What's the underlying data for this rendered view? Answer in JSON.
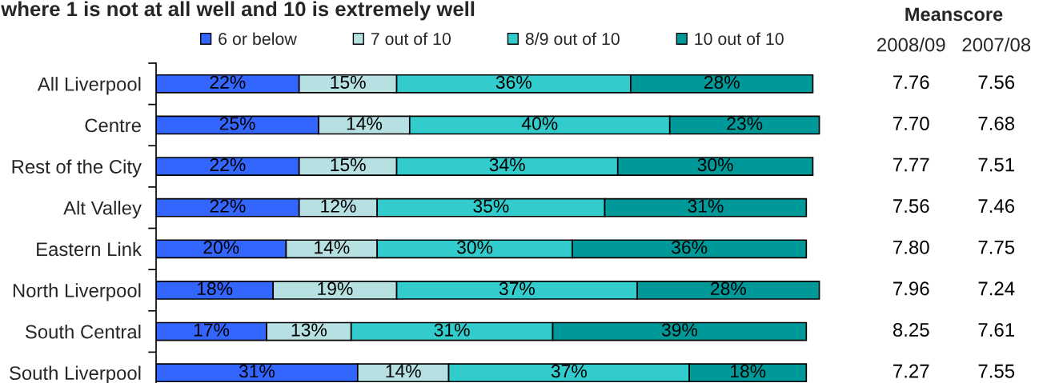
{
  "chart_data": [
    {
      "type": "bar",
      "title": "where 1 is not at all well and 10 is extremely well",
      "orientation": "horizontal",
      "stacked": true,
      "categories": [
        "All Liverpool",
        "Centre",
        "Rest of the City",
        "Alt Valley",
        "Eastern Link",
        "North Liverpool",
        "South Central",
        "South Liverpool"
      ],
      "series": [
        {
          "name": "6 or below",
          "color": "#3366ff",
          "values": [
            22,
            25,
            22,
            22,
            20,
            18,
            17,
            31
          ],
          "value_labels": [
            "22%",
            "25%",
            "22%",
            "22%",
            "20%",
            "18%",
            "17%",
            "31%"
          ]
        },
        {
          "name": "7 out of 10",
          "color": "#b7e0e2",
          "values": [
            15,
            14,
            15,
            12,
            14,
            19,
            13,
            14
          ],
          "value_labels": [
            "15%",
            "14%",
            "15%",
            "12%",
            "14%",
            "19%",
            "13%",
            "14%"
          ]
        },
        {
          "name": "8/9 out of 10",
          "color": "#33cccc",
          "values": [
            36,
            40,
            34,
            35,
            30,
            37,
            31,
            37
          ],
          "value_labels": [
            "36%",
            "40%",
            "34%",
            "35%",
            "30%",
            "37%",
            "31%",
            "37%"
          ]
        },
        {
          "name": "10 out of 10",
          "color": "#009999",
          "values": [
            28,
            23,
            30,
            31,
            36,
            28,
            39,
            18
          ],
          "value_labels": [
            "28%",
            "23%",
            "30%",
            "31%",
            "36%",
            "28%",
            "39%",
            "18%"
          ]
        }
      ],
      "legend": "top",
      "tick_labels": "y"
    },
    {
      "type": "other",
      "title": "Meanscore",
      "categories": [
        "2008/09",
        "2007/08"
      ],
      "annotations": [
        "7.76",
        "7.56",
        "7.70",
        "7.68",
        "7.77",
        "7.51",
        "7.56",
        "7.46",
        "7.80",
        "7.75",
        "7.96",
        "7.24",
        "8.25",
        "7.61",
        "7.27",
        "7.55"
      ]
    }
  ]
}
